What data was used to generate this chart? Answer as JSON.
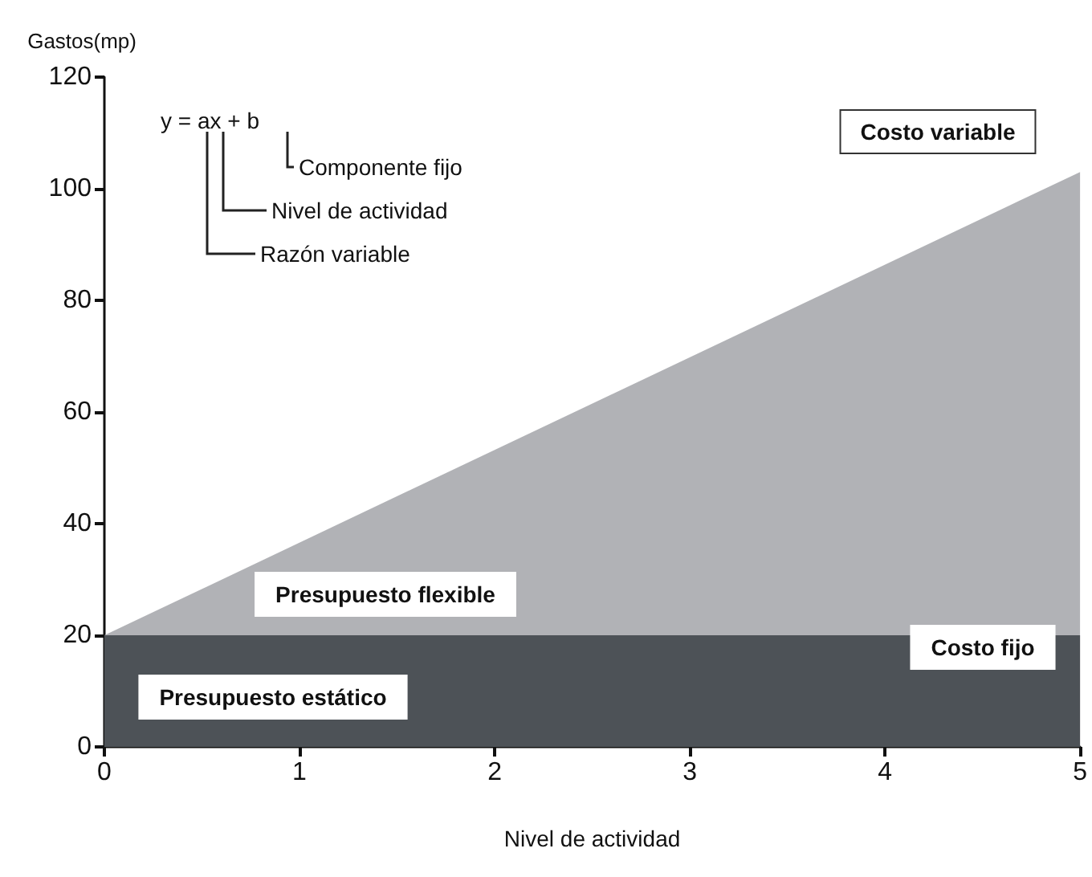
{
  "chart_data": {
    "type": "area",
    "stacked": true,
    "xlabel": "Nivel de actividad",
    "ylabel": "Gastos(mp)",
    "x": [
      0,
      5
    ],
    "series": [
      {
        "color": "#4d5257",
        "values": [
          20,
          20
        ]
      },
      {
        "color": "#b1b2b6",
        "values": [
          0,
          83
        ]
      }
    ],
    "xlim": [
      0,
      5
    ],
    "xticks": [
      0,
      1,
      2,
      3,
      4,
      5
    ],
    "ylim": [
      0,
      120
    ],
    "yticks": [
      0,
      20,
      40,
      60,
      80,
      100,
      120
    ],
    "grid": false,
    "annotations": [
      "y = ax + b",
      "Componente fijo",
      "Nivel de actividad",
      "Razón variable",
      "Costo variable",
      "Presupuesto flexible",
      "Costo fijo",
      "Presupuesto estático"
    ]
  }
}
